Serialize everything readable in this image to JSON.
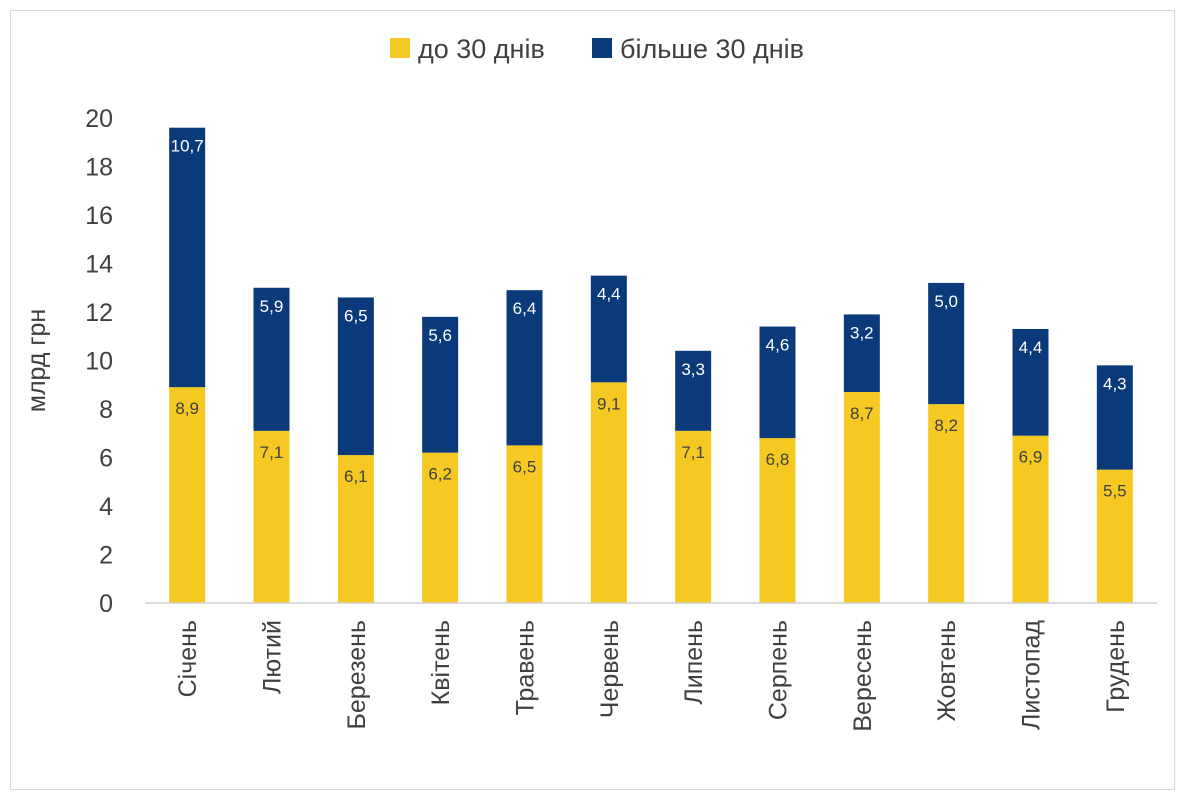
{
  "chart_data": {
    "type": "bar",
    "stacked": true,
    "categories": [
      "Січень",
      "Лютий",
      "Березень",
      "Квітень",
      "Травень",
      "Червень",
      "Липень",
      "Серпень",
      "Вересень",
      "Жовтень",
      "Листопад",
      "Грудень"
    ],
    "series": [
      {
        "name": "до 30 днів",
        "color": "#f5c922",
        "label_color": "#404040",
        "values": [
          8.9,
          7.1,
          6.1,
          6.2,
          6.5,
          9.1,
          7.1,
          6.8,
          8.7,
          8.2,
          6.9,
          5.5
        ],
        "labels": [
          "8,9",
          "7,1",
          "6,1",
          "6,2",
          "6,5",
          "9,1",
          "7,1",
          "6,8",
          "8,7",
          "8,2",
          "6,9",
          "5,5"
        ]
      },
      {
        "name": "більше 30 днів",
        "color": "#0b3a7a",
        "label_color": "#ffffff",
        "values": [
          10.7,
          5.9,
          6.5,
          5.6,
          6.4,
          4.4,
          3.3,
          4.6,
          3.2,
          5.0,
          4.4,
          4.3
        ],
        "labels": [
          "10,7",
          "5,9",
          "6,5",
          "5,6",
          "6,4",
          "4,4",
          "3,3",
          "4,6",
          "3,2",
          "5,0",
          "4,4",
          "4,3"
        ]
      }
    ],
    "ylabel": "млрд грн",
    "ylim": [
      0,
      20
    ],
    "yticks": [
      "0",
      "2",
      "4",
      "6",
      "8",
      "10",
      "12",
      "14",
      "16",
      "18",
      "20"
    ],
    "grid": false,
    "legend_position": "top"
  }
}
